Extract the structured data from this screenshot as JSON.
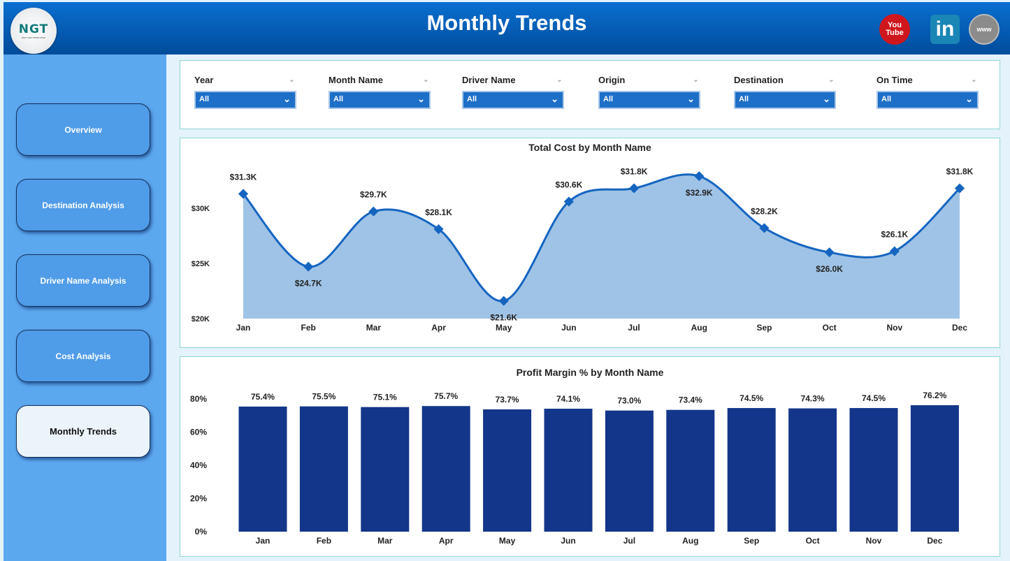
{
  "header": {
    "title": "Monthly Trends",
    "logo_text": "NGT",
    "logo_subtext": "NEXT GEN TEMPLATES",
    "social": [
      {
        "icon": "youtube-icon",
        "label": "You Tube"
      },
      {
        "icon": "linkedin-icon",
        "label": "in"
      },
      {
        "icon": "globe-icon",
        "label": "www"
      }
    ]
  },
  "sidebar": {
    "items": [
      {
        "label": "Overview"
      },
      {
        "label": "Destination Analysis"
      },
      {
        "label": "Driver Name Analysis"
      },
      {
        "label": "Cost Analysis"
      },
      {
        "label": "Monthly Trends",
        "active": true
      }
    ]
  },
  "filters": [
    {
      "label": "Year",
      "value": "All"
    },
    {
      "label": "Month Name",
      "value": "All"
    },
    {
      "label": "Driver Name",
      "value": "All"
    },
    {
      "label": "Origin",
      "value": "All"
    },
    {
      "label": "Destination",
      "value": "All"
    },
    {
      "label": "On Time",
      "value": "All"
    }
  ],
  "chart_data": [
    {
      "type": "area",
      "title": "Total Cost by Month Name",
      "categories": [
        "Jan",
        "Feb",
        "Mar",
        "Apr",
        "May",
        "Jun",
        "Jul",
        "Aug",
        "Sep",
        "Oct",
        "Nov",
        "Dec"
      ],
      "values": [
        31.3,
        24.7,
        29.7,
        28.1,
        21.6,
        30.6,
        31.8,
        32.9,
        28.2,
        26.0,
        26.1,
        31.8
      ],
      "labels": [
        "$31.3K",
        "$24.7K",
        "$29.7K",
        "$28.1K",
        "$21.6K",
        "$30.6K",
        "$31.8K",
        "$32.9K",
        "$28.2K",
        "$26.0K",
        "$26.1K",
        "$31.8K"
      ],
      "unit": "thousand USD",
      "yticks": [
        "$20K",
        "$25K",
        "$30K"
      ],
      "ylim": [
        20,
        33
      ],
      "colors": {
        "line": "#1565c0",
        "fill": "#9fc3e6"
      }
    },
    {
      "type": "bar",
      "title": "Profit Margin % by Month Name",
      "categories": [
        "Jan",
        "Feb",
        "Mar",
        "Apr",
        "May",
        "Jun",
        "Jul",
        "Aug",
        "Sep",
        "Oct",
        "Nov",
        "Dec"
      ],
      "values": [
        75.4,
        75.5,
        75.1,
        75.7,
        73.7,
        74.1,
        73.0,
        73.4,
        74.5,
        74.3,
        74.5,
        76.2
      ],
      "labels": [
        "75.4%",
        "75.5%",
        "75.1%",
        "75.7%",
        "73.7%",
        "74.1%",
        "73.0%",
        "73.4%",
        "74.5%",
        "74.3%",
        "74.5%",
        "76.2%"
      ],
      "yticks": [
        "0%",
        "20%",
        "40%",
        "60%",
        "80%"
      ],
      "ylim": [
        0,
        80
      ],
      "colors": {
        "bar": "#13368a"
      }
    }
  ]
}
